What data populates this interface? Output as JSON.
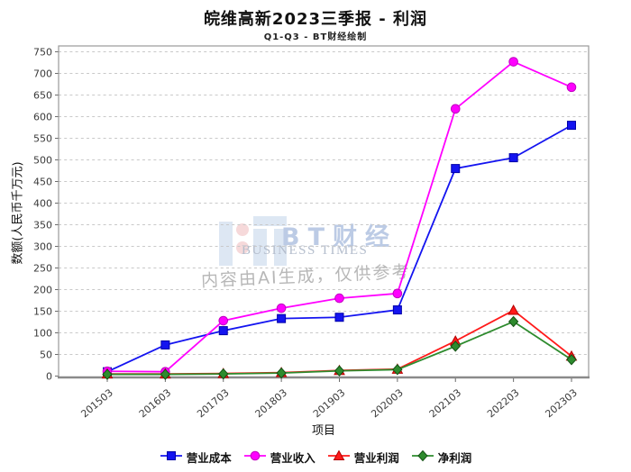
{
  "header": {
    "title": "皖维高新2023三季报 - 利润",
    "subtitle": "Q1-Q3 - BT财经绘制"
  },
  "watermark": {
    "logo_main": "BT财经",
    "logo_sub": "BUSINESS TIMES",
    "disclaimer": "内容由AI生成，仅供参考"
  },
  "chart_data": {
    "type": "line",
    "title": "皖维高新2023三季报 - 利润",
    "subtitle": "Q1-Q3 - BT财经绘制",
    "xlabel": "项目",
    "ylabel": "数额(人民币千万元)",
    "categories": [
      "201503",
      "201603",
      "201703",
      "201803",
      "201903",
      "202003",
      "202103",
      "202203",
      "202303"
    ],
    "series": [
      {
        "id": "operating-cost",
        "name": "营业成本",
        "marker": "square",
        "color": "#1414f0",
        "edge": "#0000a8",
        "values": [
          10,
          72,
          105,
          133,
          136,
          153,
          480,
          505,
          580
        ]
      },
      {
        "id": "operating-revenue",
        "name": "营业收入",
        "marker": "circle",
        "color": "#ff00ff",
        "edge": "#c000c0",
        "values": [
          11,
          10,
          128,
          157,
          180,
          191,
          618,
          727,
          668
        ]
      },
      {
        "id": "operating-profit",
        "name": "营业利润",
        "marker": "triangle",
        "color": "#ff1a1a",
        "edge": "#b30000",
        "values": [
          5,
          5,
          6,
          8,
          13,
          16,
          81,
          152,
          46
        ]
      },
      {
        "id": "net-profit",
        "name": "净利润",
        "marker": "diamond",
        "color": "#2e8b2e",
        "edge": "#145214",
        "values": [
          4,
          4,
          5,
          7,
          12,
          15,
          69,
          126,
          38
        ]
      }
    ],
    "ylim": [
      0,
      750
    ],
    "ytick_step": 50,
    "grid": "horizontal-dashed",
    "legend_position": "bottom"
  }
}
